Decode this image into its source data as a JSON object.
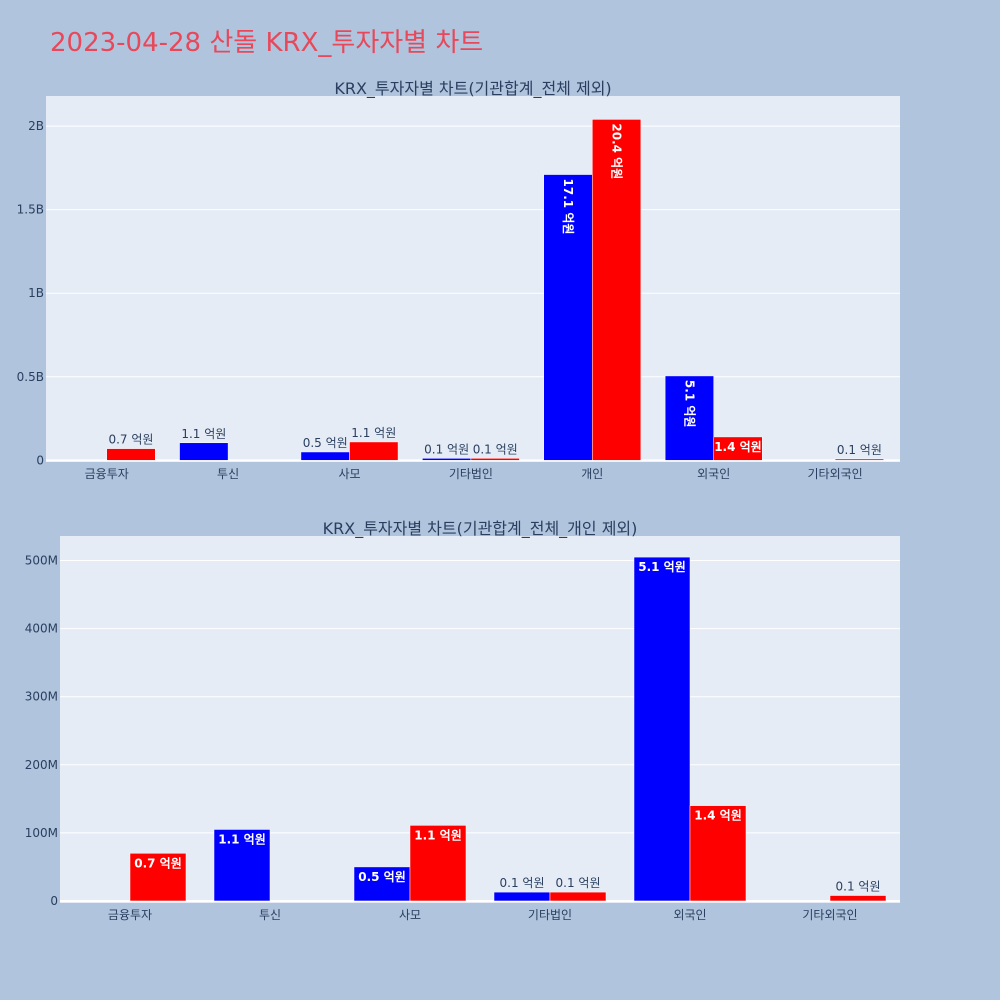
{
  "page_title": "2023-04-28 산돌 KRX_투자자별 차트",
  "colors": {
    "buy": "#0000ff",
    "sell": "#ff0000",
    "plot_bg": "#e5ecf6",
    "paper_bg": "#b0c4de",
    "title": "#e8485a"
  },
  "chart_data": [
    {
      "type": "bar",
      "title": "KRX_투자자별 차트(기관합계_전체 제외)",
      "categories": [
        "금융투자",
        "투신",
        "사모",
        "기타법인",
        "개인",
        "외국인",
        "기타외국인"
      ],
      "series": [
        {
          "values": [
            0,
            105000000,
            50000000,
            12000000,
            1710000000,
            505000000,
            0
          ],
          "labels": [
            "",
            "1.1 억원",
            "0.5 억원",
            "0.1 억원",
            "17.1 억원",
            "5.1 억원",
            ""
          ],
          "label_pos": [
            "",
            "outside",
            "outside",
            "outside",
            "inside-rotated",
            "inside-rotated",
            ""
          ]
        },
        {
          "values": [
            70000000,
            0,
            110000000,
            12000000,
            2040000000,
            140000000,
            8000000
          ],
          "labels": [
            "0.7 억원",
            "",
            "1.1 억원",
            "0.1 억원",
            "20.4 억원",
            "1.4 억원",
            "0.1 억원"
          ],
          "label_pos": [
            "outside",
            "",
            "outside",
            "outside",
            "inside-rotated",
            "inside",
            "outside"
          ]
        }
      ],
      "yticks": [
        0,
        500000000,
        1000000000,
        1500000000,
        2000000000
      ],
      "ytick_labels": [
        "0",
        "0.5B",
        "1B",
        "1.5B",
        "2B"
      ],
      "ylim": [
        -10000000,
        2180000000
      ],
      "grid": true
    },
    {
      "type": "bar",
      "title": "KRX_투자자별 차트(기관합계_전체_개인 제외)",
      "categories": [
        "금융투자",
        "투신",
        "사모",
        "기타법인",
        "외국인",
        "기타외국인"
      ],
      "series": [
        {
          "values": [
            0,
            105000000,
            50000000,
            13000000,
            505000000,
            0
          ],
          "labels": [
            "",
            "1.1 억원",
            "0.5 억원",
            "0.1 억원",
            "5.1 억원",
            ""
          ],
          "label_pos": [
            "",
            "inside",
            "inside",
            "outside",
            "inside",
            ""
          ]
        },
        {
          "values": [
            70000000,
            0,
            111000000,
            13000000,
            140000000,
            8000000
          ],
          "labels": [
            "0.7 억원",
            "",
            "1.1 억원",
            "0.1 억원",
            "1.4 억원",
            "0.1 억원"
          ],
          "label_pos": [
            "inside",
            "",
            "inside",
            "outside",
            "inside",
            "outside"
          ]
        }
      ],
      "yticks": [
        0,
        100000000,
        200000000,
        300000000,
        400000000,
        500000000
      ],
      "ytick_labels": [
        "0",
        "100M",
        "200M",
        "300M",
        "400M",
        "500M"
      ],
      "ylim": [
        -3000000,
        536000000
      ],
      "grid": true
    }
  ]
}
